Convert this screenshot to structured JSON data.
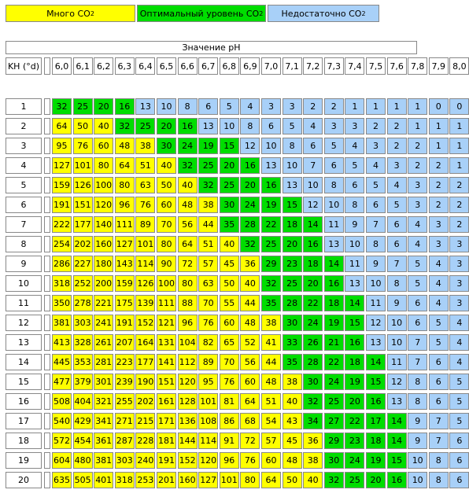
{
  "legend": {
    "high": {
      "text": "Много CO",
      "sub": "2",
      "color": "#ffff00"
    },
    "optimal": {
      "text": "Оптимальный уровень CO",
      "sub": "2",
      "color": "#00dd00"
    },
    "low": {
      "text": "Недостаточно CO",
      "sub": "2",
      "color": "#a8d0f8"
    }
  },
  "chart_data": {
    "type": "table",
    "title": "Значение pH",
    "row_header": "KH (°d)",
    "columns": [
      "6,0",
      "6,1",
      "6,2",
      "6,3",
      "6,4",
      "6,5",
      "6,6",
      "6,7",
      "6,8",
      "6,9",
      "7,0",
      "7,1",
      "7,2",
      "7,3",
      "7,4",
      "7,5",
      "7,6",
      "7,8",
      "7,9",
      "8,0"
    ],
    "rows": [
      "1",
      "2",
      "3",
      "4",
      "5",
      "6",
      "7",
      "8",
      "9",
      "10",
      "11",
      "12",
      "13",
      "14",
      "15",
      "16",
      "17",
      "18",
      "19",
      "20"
    ],
    "values": [
      [
        32,
        25,
        20,
        16,
        13,
        10,
        8,
        6,
        5,
        4,
        3,
        3,
        2,
        2,
        1,
        1,
        1,
        1,
        0,
        0
      ],
      [
        64,
        50,
        40,
        32,
        25,
        20,
        16,
        13,
        10,
        8,
        6,
        5,
        4,
        3,
        3,
        2,
        2,
        1,
        1,
        1
      ],
      [
        95,
        76,
        60,
        48,
        38,
        30,
        24,
        19,
        15,
        12,
        10,
        8,
        6,
        5,
        4,
        3,
        2,
        2,
        1,
        1
      ],
      [
        127,
        101,
        80,
        64,
        51,
        40,
        32,
        25,
        20,
        16,
        13,
        10,
        7,
        6,
        5,
        4,
        3,
        2,
        2,
        1
      ],
      [
        159,
        126,
        100,
        80,
        63,
        50,
        40,
        32,
        25,
        20,
        16,
        13,
        10,
        8,
        6,
        5,
        4,
        3,
        2,
        2
      ],
      [
        191,
        151,
        120,
        96,
        76,
        60,
        48,
        38,
        30,
        24,
        19,
        15,
        12,
        10,
        8,
        6,
        5,
        3,
        2,
        2
      ],
      [
        222,
        177,
        140,
        111,
        89,
        70,
        56,
        44,
        35,
        28,
        22,
        18,
        14,
        11,
        9,
        7,
        6,
        4,
        3,
        2
      ],
      [
        254,
        202,
        160,
        127,
        101,
        80,
        64,
        51,
        40,
        32,
        25,
        20,
        16,
        13,
        10,
        8,
        6,
        4,
        3,
        3
      ],
      [
        286,
        227,
        180,
        143,
        114,
        90,
        72,
        57,
        45,
        36,
        29,
        23,
        18,
        14,
        11,
        9,
        7,
        5,
        4,
        3
      ],
      [
        318,
        252,
        200,
        159,
        126,
        100,
        80,
        63,
        50,
        40,
        32,
        25,
        20,
        16,
        13,
        10,
        8,
        5,
        4,
        3
      ],
      [
        350,
        278,
        221,
        175,
        139,
        111,
        88,
        70,
        55,
        44,
        35,
        28,
        22,
        18,
        14,
        11,
        9,
        6,
        4,
        3
      ],
      [
        381,
        303,
        241,
        191,
        152,
        121,
        96,
        76,
        60,
        48,
        38,
        30,
        24,
        19,
        15,
        12,
        10,
        6,
        5,
        4
      ],
      [
        413,
        328,
        261,
        207,
        164,
        131,
        104,
        82,
        65,
        52,
        41,
        33,
        26,
        21,
        16,
        13,
        10,
        7,
        5,
        4
      ],
      [
        445,
        353,
        281,
        223,
        177,
        141,
        112,
        89,
        70,
        56,
        44,
        35,
        28,
        22,
        18,
        14,
        11,
        7,
        6,
        4
      ],
      [
        477,
        379,
        301,
        239,
        190,
        151,
        120,
        95,
        76,
        60,
        48,
        38,
        30,
        24,
        19,
        15,
        12,
        8,
        6,
        5
      ],
      [
        508,
        404,
        321,
        255,
        202,
        161,
        128,
        101,
        81,
        64,
        51,
        40,
        32,
        25,
        20,
        16,
        13,
        8,
        6,
        5
      ],
      [
        540,
        429,
        341,
        271,
        215,
        171,
        136,
        108,
        86,
        68,
        54,
        43,
        34,
        27,
        22,
        17,
        14,
        9,
        7,
        5
      ],
      [
        572,
        454,
        361,
        287,
        228,
        181,
        144,
        114,
        91,
        72,
        57,
        45,
        36,
        29,
        23,
        18,
        14,
        9,
        7,
        6
      ],
      [
        604,
        480,
        381,
        303,
        240,
        191,
        152,
        120,
        96,
        76,
        60,
        48,
        38,
        30,
        24,
        19,
        15,
        10,
        8,
        6
      ],
      [
        635,
        505,
        401,
        318,
        253,
        201,
        160,
        127,
        101,
        80,
        64,
        50,
        40,
        32,
        25,
        20,
        16,
        10,
        8,
        6
      ]
    ],
    "zones": [
      [
        1,
        1,
        1,
        1,
        2,
        2,
        2,
        2,
        2,
        2,
        2,
        2,
        2,
        2,
        2,
        2,
        2,
        2,
        2,
        2
      ],
      [
        0,
        0,
        0,
        1,
        1,
        1,
        1,
        2,
        2,
        2,
        2,
        2,
        2,
        2,
        2,
        2,
        2,
        2,
        2,
        2
      ],
      [
        0,
        0,
        0,
        0,
        0,
        1,
        1,
        1,
        1,
        2,
        2,
        2,
        2,
        2,
        2,
        2,
        2,
        2,
        2,
        2
      ],
      [
        0,
        0,
        0,
        0,
        0,
        0,
        1,
        1,
        1,
        1,
        2,
        2,
        2,
        2,
        2,
        2,
        2,
        2,
        2,
        2
      ],
      [
        0,
        0,
        0,
        0,
        0,
        0,
        0,
        1,
        1,
        1,
        1,
        2,
        2,
        2,
        2,
        2,
        2,
        2,
        2,
        2
      ],
      [
        0,
        0,
        0,
        0,
        0,
        0,
        0,
        0,
        1,
        1,
        1,
        1,
        2,
        2,
        2,
        2,
        2,
        2,
        2,
        2
      ],
      [
        0,
        0,
        0,
        0,
        0,
        0,
        0,
        0,
        1,
        1,
        1,
        1,
        1,
        2,
        2,
        2,
        2,
        2,
        2,
        2
      ],
      [
        0,
        0,
        0,
        0,
        0,
        0,
        0,
        0,
        0,
        1,
        1,
        1,
        1,
        2,
        2,
        2,
        2,
        2,
        2,
        2
      ],
      [
        0,
        0,
        0,
        0,
        0,
        0,
        0,
        0,
        0,
        0,
        1,
        1,
        1,
        1,
        2,
        2,
        2,
        2,
        2,
        2
      ],
      [
        0,
        0,
        0,
        0,
        0,
        0,
        0,
        0,
        0,
        0,
        1,
        1,
        1,
        1,
        2,
        2,
        2,
        2,
        2,
        2
      ],
      [
        0,
        0,
        0,
        0,
        0,
        0,
        0,
        0,
        0,
        0,
        1,
        1,
        1,
        1,
        1,
        2,
        2,
        2,
        2,
        2
      ],
      [
        0,
        0,
        0,
        0,
        0,
        0,
        0,
        0,
        0,
        0,
        0,
        1,
        1,
        1,
        1,
        2,
        2,
        2,
        2,
        2
      ],
      [
        0,
        0,
        0,
        0,
        0,
        0,
        0,
        0,
        0,
        0,
        0,
        1,
        1,
        1,
        1,
        2,
        2,
        2,
        2,
        2
      ],
      [
        0,
        0,
        0,
        0,
        0,
        0,
        0,
        0,
        0,
        0,
        0,
        1,
        1,
        1,
        1,
        1,
        2,
        2,
        2,
        2
      ],
      [
        0,
        0,
        0,
        0,
        0,
        0,
        0,
        0,
        0,
        0,
        0,
        0,
        1,
        1,
        1,
        1,
        2,
        2,
        2,
        2
      ],
      [
        0,
        0,
        0,
        0,
        0,
        0,
        0,
        0,
        0,
        0,
        0,
        0,
        1,
        1,
        1,
        1,
        2,
        2,
        2,
        2
      ],
      [
        0,
        0,
        0,
        0,
        0,
        0,
        0,
        0,
        0,
        0,
        0,
        0,
        1,
        1,
        1,
        1,
        1,
        2,
        2,
        2
      ],
      [
        0,
        0,
        0,
        0,
        0,
        0,
        0,
        0,
        0,
        0,
        0,
        0,
        0,
        1,
        1,
        1,
        1,
        2,
        2,
        2
      ],
      [
        0,
        0,
        0,
        0,
        0,
        0,
        0,
        0,
        0,
        0,
        0,
        0,
        0,
        1,
        1,
        1,
        1,
        2,
        2,
        2
      ],
      [
        0,
        0,
        0,
        0,
        0,
        0,
        0,
        0,
        0,
        0,
        0,
        0,
        0,
        1,
        1,
        1,
        1,
        2,
        2,
        2
      ]
    ]
  }
}
